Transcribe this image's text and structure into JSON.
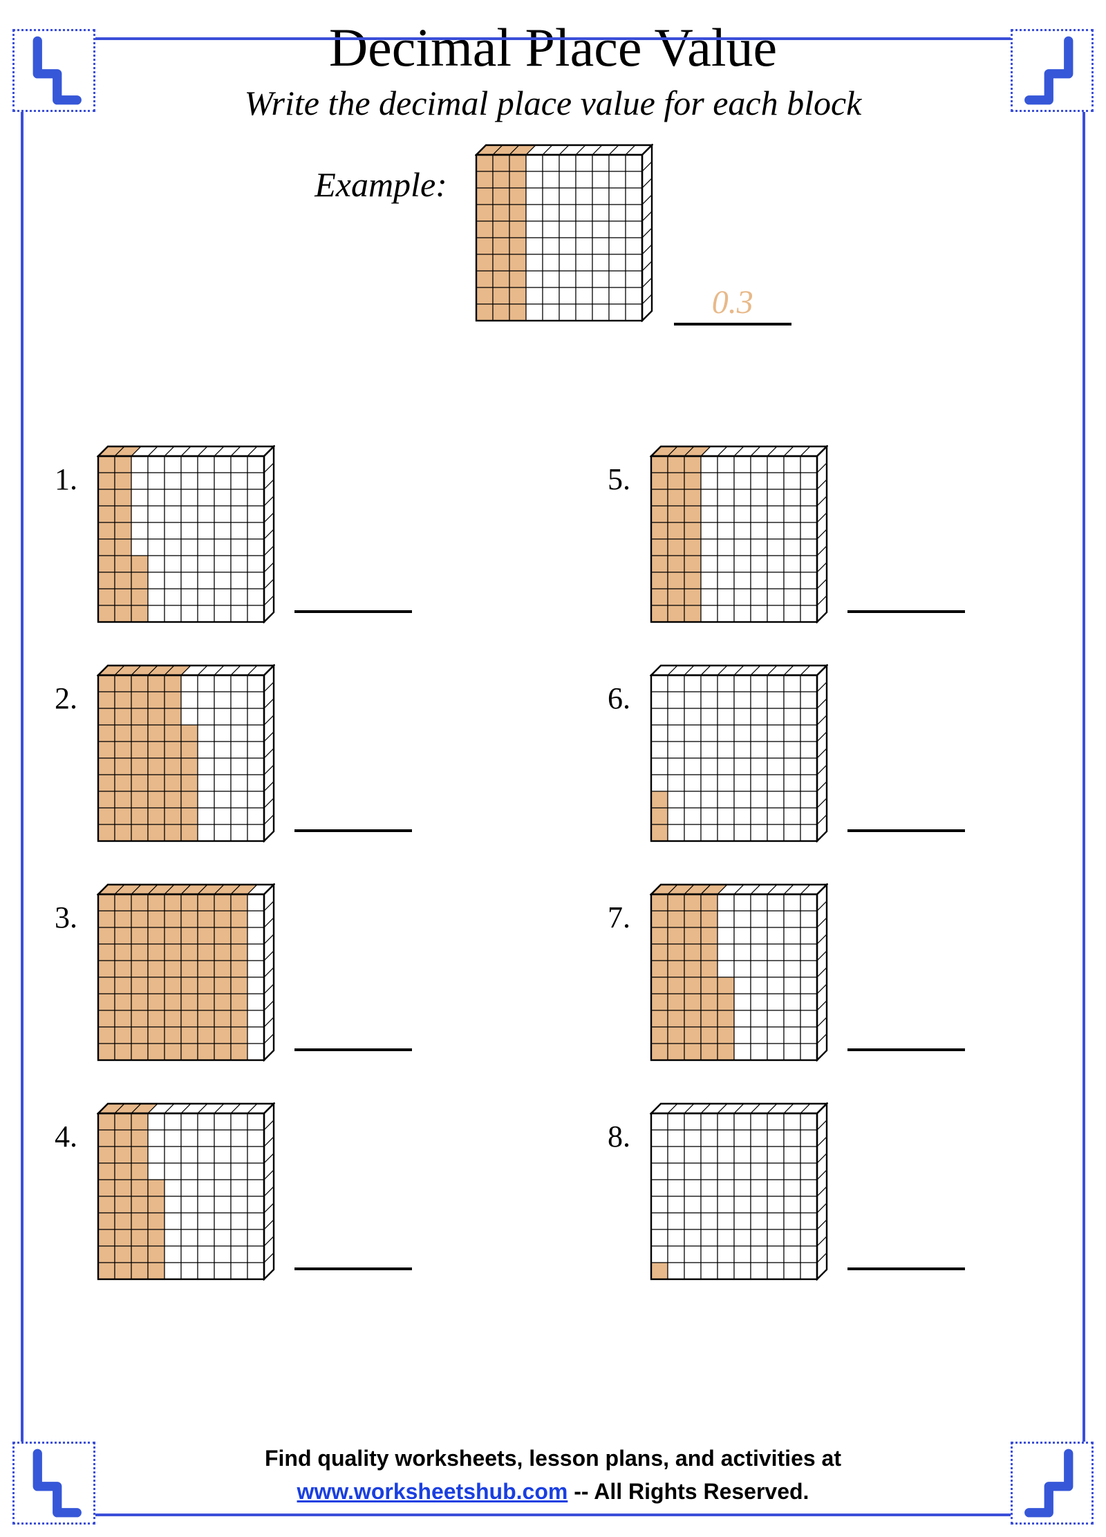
{
  "title": "Decimal Place Value",
  "instructions": "Write the decimal place value for each block",
  "example_label": "Example:",
  "example": {
    "full_columns": 3,
    "extra_cells": 0,
    "answer": "0.3"
  },
  "answer_color": "#e8b98a",
  "block": {
    "cell_size": 24,
    "depth": 14,
    "fill_color": "#e8b98a",
    "empty_color": "#ffffff",
    "stroke": "#000000",
    "stroke_width": 1.2
  },
  "frame_color": "#3b4fd9",
  "glyph_color": "#3657d8",
  "left_problems": [
    {
      "n": "1.",
      "full_columns": 2,
      "extra_cells": 4
    },
    {
      "n": "2.",
      "full_columns": 5,
      "extra_cells": 7
    },
    {
      "n": "3.",
      "full_columns": 9,
      "extra_cells": 0
    },
    {
      "n": "4.",
      "full_columns": 3,
      "extra_cells": 6
    }
  ],
  "right_problems": [
    {
      "n": "5.",
      "full_columns": 3,
      "extra_cells": 0
    },
    {
      "n": "6.",
      "full_columns": 0,
      "extra_cells": 3
    },
    {
      "n": "7.",
      "full_columns": 4,
      "extra_cells": 5
    },
    {
      "n": "8.",
      "full_columns": 0,
      "extra_cells": 1
    }
  ],
  "footer_line1": "Find quality worksheets, lesson plans, and activities at",
  "footer_url": "www.worksheetshub.com",
  "footer_suffix": "  -- All Rights Reserved."
}
